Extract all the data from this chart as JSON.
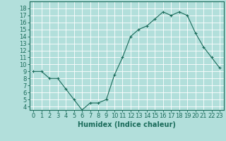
{
  "x": [
    0,
    1,
    2,
    3,
    4,
    5,
    6,
    7,
    8,
    9,
    10,
    11,
    12,
    13,
    14,
    15,
    16,
    17,
    18,
    19,
    20,
    21,
    22,
    23
  ],
  "y": [
    9,
    9,
    8,
    8,
    6.5,
    5,
    3.5,
    4.5,
    4.5,
    5,
    8.5,
    11,
    14,
    15,
    15.5,
    16.5,
    17.5,
    17,
    17.5,
    17,
    14.5,
    12.5,
    11,
    9.5
  ],
  "xlabel": "Humidex (Indice chaleur)",
  "ylabel": "",
  "xlim": [
    -0.5,
    23.5
  ],
  "ylim": [
    3.5,
    19
  ],
  "yticks": [
    4,
    5,
    6,
    7,
    8,
    9,
    10,
    11,
    12,
    13,
    14,
    15,
    16,
    17,
    18
  ],
  "xticks": [
    0,
    1,
    2,
    3,
    4,
    5,
    6,
    7,
    8,
    9,
    10,
    11,
    12,
    13,
    14,
    15,
    16,
    17,
    18,
    19,
    20,
    21,
    22,
    23
  ],
  "line_color": "#1a6b5a",
  "marker": "+",
  "bg_color": "#b2dfdb",
  "grid_color": "#ffffff",
  "label_fontsize": 7,
  "tick_fontsize": 6
}
